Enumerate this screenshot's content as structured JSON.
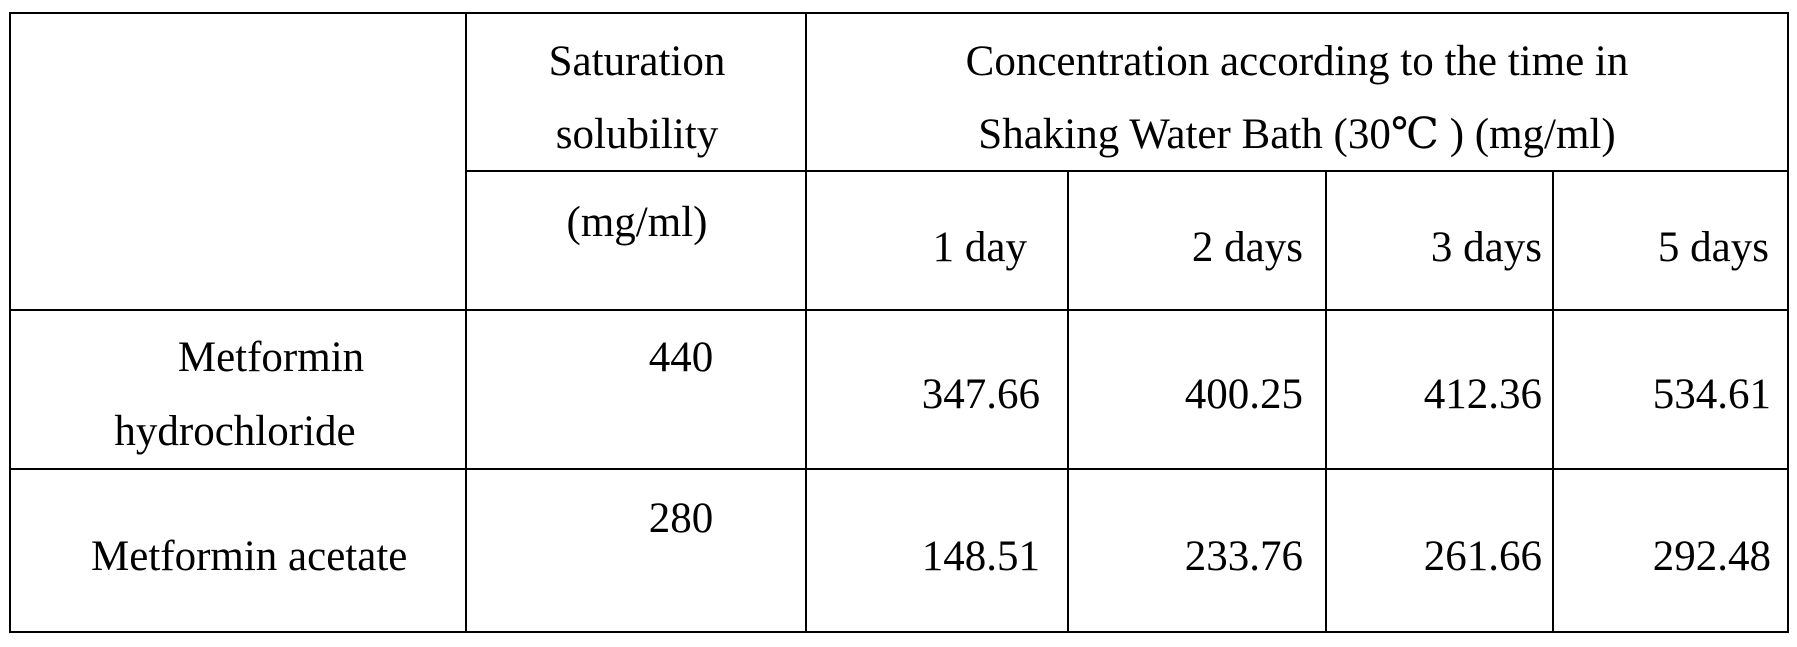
{
  "table": {
    "header": {
      "saturation_line1": "Saturation",
      "saturation_line2": "solubility",
      "saturation_line3": "(mg/ml)",
      "concentration_line1": "Concentration according to the time in",
      "concentration_line2": "Shaking Water Bath (30℃ ) (mg/ml)",
      "time_columns": [
        "1 day",
        "2 days",
        "3 days",
        "5 days"
      ]
    },
    "rows": [
      {
        "name_line1": "Metformin",
        "name_line2": "hydrochloride",
        "saturation": "440",
        "values": [
          "347.66",
          "400.25",
          "412.36",
          "534.61"
        ]
      },
      {
        "name_line1": "Metformin acetate",
        "saturation": "280",
        "values": [
          "148.51",
          "233.76",
          "261.66",
          "292.48"
        ]
      }
    ]
  }
}
